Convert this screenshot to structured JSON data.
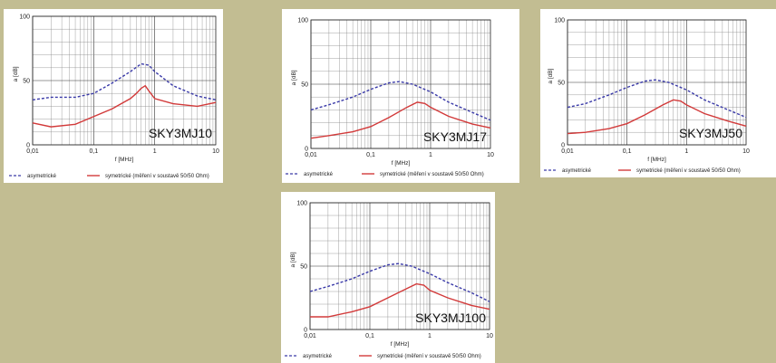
{
  "legend": {
    "asym_label": "asymetrické",
    "sym_label": "symetrické (měření v soustavě 50/50 Ohm)",
    "asym_color": "#3a3aa8",
    "sym_color": "#d23a3a"
  },
  "chart_data": [
    {
      "type": "line",
      "title": "SKY3MJ10",
      "xlabel": "f [MHz]",
      "ylabel": "a [dB]",
      "xscale": "log",
      "xlim": [
        0.01,
        10
      ],
      "ylim": [
        0,
        100
      ],
      "xticks": [
        "0,01",
        "0,1",
        "1",
        "10"
      ],
      "yticks": [
        "0",
        "50",
        "100"
      ],
      "series": [
        {
          "name": "asymetrické",
          "style": "dashed",
          "x": [
            0.01,
            0.02,
            0.05,
            0.1,
            0.2,
            0.4,
            0.6,
            0.8,
            1,
            2,
            5,
            10
          ],
          "y": [
            35,
            37,
            37,
            40,
            48,
            57,
            63,
            62,
            57,
            46,
            38,
            35
          ]
        },
        {
          "name": "symetrické (měření v soustavě 50/50 Ohm)",
          "style": "solid",
          "x": [
            0.01,
            0.02,
            0.05,
            0.1,
            0.2,
            0.4,
            0.5,
            0.6,
            0.7,
            0.8,
            1,
            2,
            5,
            10
          ],
          "y": [
            17,
            14,
            16,
            22,
            28,
            36,
            40,
            44,
            46,
            42,
            36,
            32,
            30,
            33
          ]
        }
      ]
    },
    {
      "type": "line",
      "title": "SKY3MJ17",
      "xlabel": "f [MHz]",
      "ylabel": "a [dB]",
      "xscale": "log",
      "xlim": [
        0.01,
        10
      ],
      "ylim": [
        0,
        100
      ],
      "xticks": [
        "0,01",
        "0,1",
        "1",
        "10"
      ],
      "yticks": [
        "0",
        "50",
        "100"
      ],
      "series": [
        {
          "name": "asymetrické",
          "style": "dashed",
          "x": [
            0.01,
            0.02,
            0.05,
            0.1,
            0.2,
            0.3,
            0.5,
            1,
            2,
            5,
            10
          ],
          "y": [
            30,
            34,
            40,
            46,
            51,
            52,
            50,
            44,
            36,
            28,
            22
          ]
        },
        {
          "name": "symetrické (měření v soustavě 50/50 Ohm)",
          "style": "solid",
          "x": [
            0.01,
            0.02,
            0.05,
            0.1,
            0.2,
            0.4,
            0.6,
            0.8,
            1,
            2,
            5,
            10
          ],
          "y": [
            8,
            10,
            13,
            17,
            24,
            32,
            36,
            35,
            32,
            25,
            19,
            16
          ]
        }
      ]
    },
    {
      "type": "line",
      "title": "SKY3MJ50",
      "xlabel": "f [MHz]",
      "ylabel": "a [dB]",
      "xscale": "log",
      "xlim": [
        0.01,
        10
      ],
      "ylim": [
        0,
        100
      ],
      "xticks": [
        "0,01",
        "0,1",
        "1",
        "10"
      ],
      "yticks": [
        "0",
        "50",
        "100"
      ],
      "series": [
        {
          "name": "asymetrické",
          "style": "dashed",
          "x": [
            0.01,
            0.02,
            0.05,
            0.1,
            0.2,
            0.3,
            0.5,
            1,
            2,
            5,
            10
          ],
          "y": [
            30,
            33,
            40,
            46,
            51,
            52,
            50,
            44,
            36,
            28,
            22
          ]
        },
        {
          "name": "symetrické (měření v soustavě 50/50 Ohm)",
          "style": "solid",
          "x": [
            0.01,
            0.02,
            0.05,
            0.1,
            0.2,
            0.4,
            0.6,
            0.8,
            1,
            2,
            5,
            10
          ],
          "y": [
            9,
            10,
            13,
            17,
            24,
            32,
            36,
            35,
            32,
            25,
            19,
            15
          ]
        }
      ]
    },
    {
      "type": "line",
      "title": "SKY3MJ100",
      "xlabel": "f [MHz]",
      "ylabel": "a [dB]",
      "xscale": "log",
      "xlim": [
        0.01,
        10
      ],
      "ylim": [
        0,
        100
      ],
      "xticks": [
        "0,01",
        "0,1",
        "1",
        "10"
      ],
      "yticks": [
        "0",
        "50",
        "100"
      ],
      "series": [
        {
          "name": "asymetrické",
          "style": "dashed",
          "x": [
            0.01,
            0.02,
            0.05,
            0.1,
            0.2,
            0.3,
            0.5,
            1,
            2,
            5,
            10
          ],
          "y": [
            30,
            34,
            40,
            46,
            51,
            52,
            50,
            44,
            37,
            29,
            22
          ]
        },
        {
          "name": "symetrické (měření v soustavě 50/50 Ohm)",
          "style": "solid",
          "x": [
            0.01,
            0.02,
            0.05,
            0.1,
            0.2,
            0.4,
            0.6,
            0.8,
            1,
            2,
            5,
            10
          ],
          "y": [
            10,
            10,
            14,
            18,
            25,
            32,
            36,
            35,
            31,
            25,
            19,
            16
          ]
        }
      ]
    }
  ]
}
